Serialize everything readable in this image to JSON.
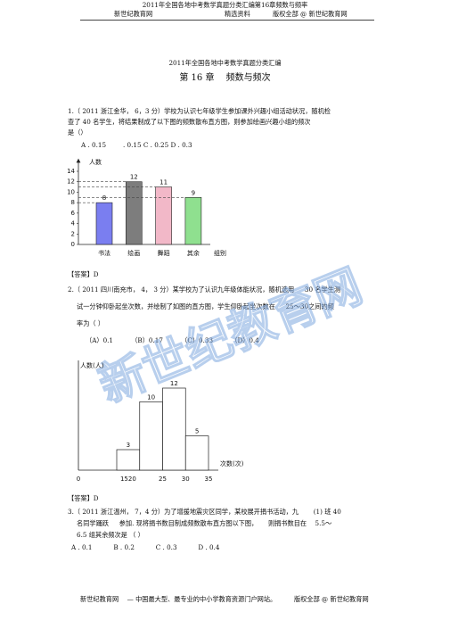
{
  "header": {
    "title": "2011年全国各地中考数学真题分类汇编第16章频数与频率",
    "left": "新世纪教育网",
    "middle": "精选资料",
    "right": "版权全部 @ 新世纪教育网"
  },
  "document": {
    "title": "2011年全国各地中考数学真题分类汇编",
    "chapter": "第 16 章　 频数与频次"
  },
  "questions": [
    {
      "lines": [
        "1.（ 2011 浙江金华， 6，3 分）学校为认识七年级学生参加课外兴趣小组活动状况，随机检",
        "查了 40 名学生，将结果制成了以下图的频数散布直方图，则参加绘画兴趣小组的频次",
        "是（）"
      ],
      "options": "A . 0.15 　　 . 0.15 C . 0.25 D . 0.3",
      "answer": "【答案】D"
    },
    {
      "lines": [
        "2.（ 2011 四川南充市， 4， 3 分）某学校为了认识九年级体能状况，随机选用 　 30 名学生测",
        "试一分钟仰卧起坐次数，并绘制了如图的直方图，学生仰卧起坐次数在 　 25～30之间的频",
        "率为（ ）"
      ],
      "options": "（A）0.1 　　　（B）0.17 　　　（C）0.33 　　　（D）0.4",
      "answer": "【答案】D"
    },
    {
      "lines": [
        "3.（ 2011 浙江温州， 7，4 分）为了增援地震灾区同学，某校展开捐书活动，九 　　(1) 班 40",
        "名同学踊跃 　 参加. 现将捐书数目制成频数散布直方图以下图， 　 则捐书数目在 　5.5～",
        "6.5 组其余频次是 （ ）"
      ],
      "options": "A . 0.1 　　　B . 0.2 　　　C . 0.3 　　　D . 0.4"
    }
  ],
  "chart_data": [
    {
      "type": "bar",
      "y_label": "人数",
      "x_label": "组别",
      "categories": [
        "书法",
        "绘画",
        "舞蹈",
        "其余"
      ],
      "values": [
        8,
        12,
        11,
        9
      ],
      "colors": [
        "#7a7ef0",
        "#7d7d7d",
        "#f2b8c8",
        "#8fe08f"
      ],
      "ylim": [
        0,
        14
      ],
      "yticks": [
        0,
        2,
        4,
        6,
        8,
        10,
        12,
        14
      ],
      "guides": "dashed"
    },
    {
      "type": "histogram",
      "y_label": "人数(人)",
      "x_label": "次数(次)",
      "bins": [
        15,
        20,
        25,
        30,
        35
      ],
      "values": [
        3,
        10,
        12,
        5
      ],
      "x_labels": [
        "0",
        "1520",
        "25",
        "30",
        "35"
      ],
      "ylim": [
        0,
        15
      ]
    }
  ],
  "footer": {
    "left": "新世纪教育网 　— 中国最大型、最专业的中小学教育资源门户网站。",
    "right": "版权全部 @ 新世纪教育网"
  },
  "watermark": "新世纪教育网"
}
